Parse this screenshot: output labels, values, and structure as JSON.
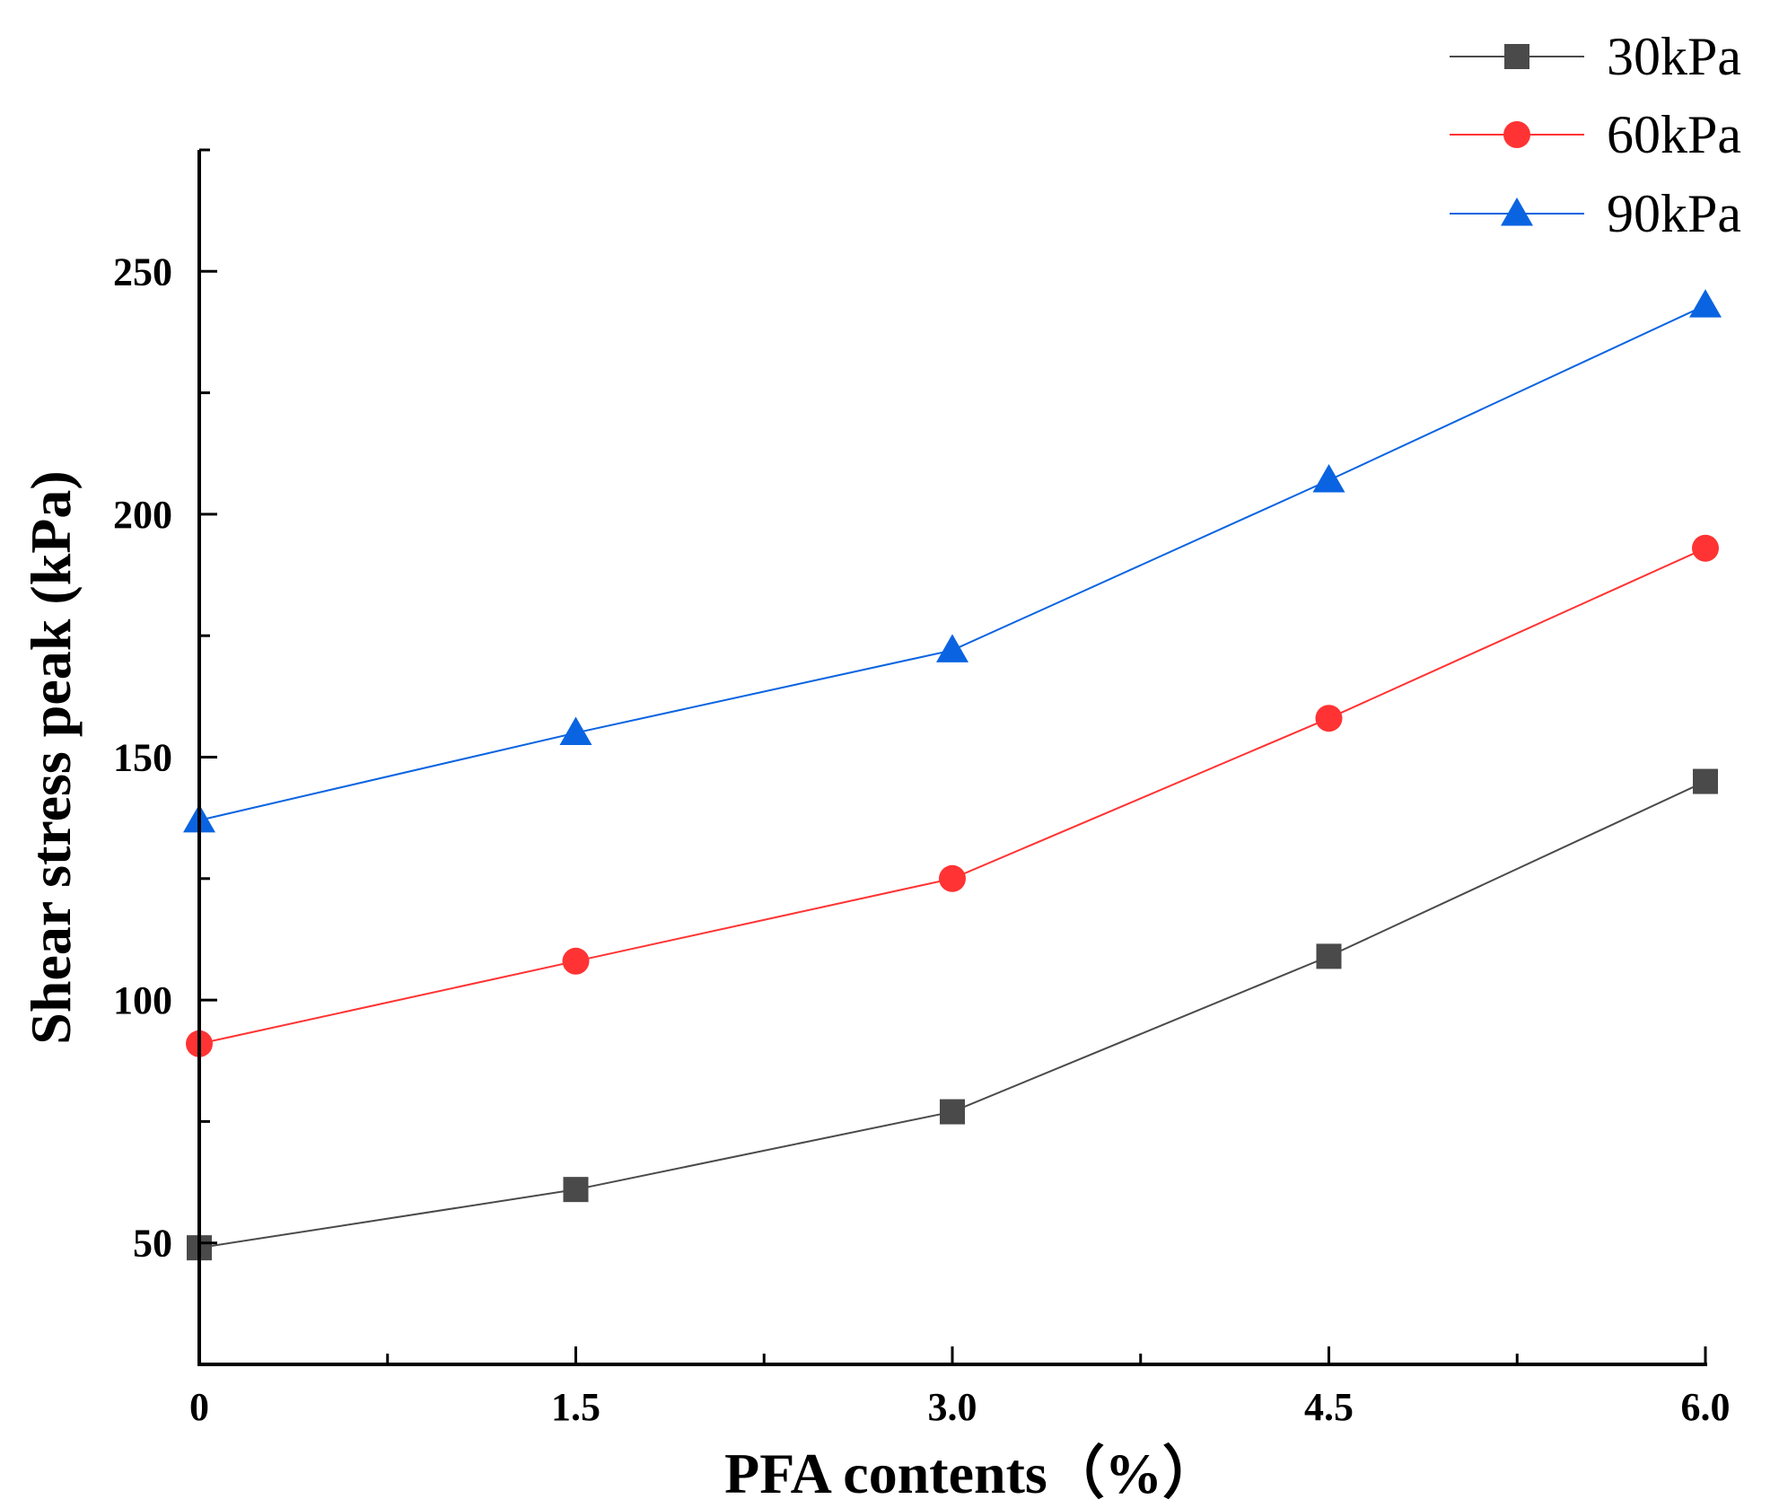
{
  "chart_data": {
    "type": "line",
    "title": "",
    "xlabel": "PFA contents（%）",
    "ylabel": "Shear stress peak (kPa)",
    "categories": [
      "0",
      "1.5",
      "3.0",
      "4.5",
      "6.0"
    ],
    "x": [
      0,
      1.5,
      3.0,
      4.5,
      6.0
    ],
    "xlim": [
      0,
      6.0
    ],
    "ylim": [
      25,
      275
    ],
    "y_ticks": [
      50,
      100,
      150,
      200,
      250
    ],
    "grid": false,
    "legend_position": "top-right",
    "series": [
      {
        "name": "30kPa",
        "marker": "square",
        "color": "#4a4a4a",
        "values": [
          49,
          61,
          77,
          109,
          145
        ]
      },
      {
        "name": "60kPa",
        "marker": "circle",
        "color": "#ff3333",
        "values": [
          91,
          108,
          125,
          158,
          193
        ]
      },
      {
        "name": "90kPa",
        "marker": "triangle",
        "color": "#0a64e1",
        "values": [
          137,
          155,
          172,
          207,
          243
        ]
      }
    ]
  }
}
